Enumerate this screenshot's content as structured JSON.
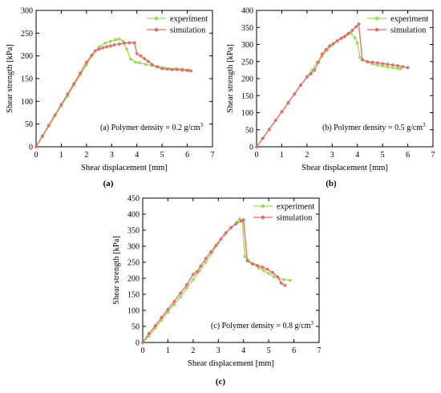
{
  "chart_data": [
    {
      "panel": "(a)",
      "type": "line",
      "annotation_main": "(a) Polymer density = 0.2 g/cm",
      "annotation_sup": "3",
      "xlabel": "Shear displacement [mm]",
      "ylabel": "Shear strength [kPa]",
      "xlim": [
        0,
        7
      ],
      "ylim": [
        0,
        300
      ],
      "xticks": [
        0,
        1,
        2,
        3,
        4,
        5,
        6,
        7
      ],
      "yticks": [
        0,
        50,
        100,
        150,
        200,
        250,
        300
      ],
      "legend_position": "top-right",
      "series": [
        {
          "name": "experiment",
          "color": "#99dd55",
          "points": [
            [
              0,
              0
            ],
            [
              0.25,
              22
            ],
            [
              0.5,
              45
            ],
            [
              0.75,
              68
            ],
            [
              1,
              90
            ],
            [
              1.25,
              112
            ],
            [
              1.5,
              135
            ],
            [
              1.75,
              158
            ],
            [
              2,
              180
            ],
            [
              2.25,
              203
            ],
            [
              2.5,
              220
            ],
            [
              2.75,
              228
            ],
            [
              2.95,
              232
            ],
            [
              3.15,
              236
            ],
            [
              3.3,
              237
            ],
            [
              3.45,
              232
            ],
            [
              3.6,
              215
            ],
            [
              3.75,
              193
            ],
            [
              3.95,
              186
            ],
            [
              4.1,
              185
            ],
            [
              4.35,
              181
            ],
            [
              4.6,
              179
            ],
            [
              4.85,
              176
            ],
            [
              5.05,
              174
            ],
            [
              5.3,
              172
            ],
            [
              5.55,
              172
            ],
            [
              5.8,
              171
            ],
            [
              6.05,
              169
            ]
          ]
        },
        {
          "name": "simulation",
          "color": "#ee6666",
          "points": [
            [
              0,
              0
            ],
            [
              0.25,
              24
            ],
            [
              0.5,
              47
            ],
            [
              0.75,
              70
            ],
            [
              1,
              93
            ],
            [
              1.25,
              116
            ],
            [
              1.5,
              139
            ],
            [
              1.75,
              162
            ],
            [
              2,
              186
            ],
            [
              2.2,
              201
            ],
            [
              2.35,
              211
            ],
            [
              2.5,
              215
            ],
            [
              2.65,
              218
            ],
            [
              2.8,
              220
            ],
            [
              2.95,
              222
            ],
            [
              3.1,
              224
            ],
            [
              3.3,
              226
            ],
            [
              3.5,
              228
            ],
            [
              3.7,
              229
            ],
            [
              3.9,
              229
            ],
            [
              4.0,
              205
            ],
            [
              4.15,
              200
            ],
            [
              4.3,
              194
            ],
            [
              4.45,
              188
            ],
            [
              4.6,
              181
            ],
            [
              4.8,
              176
            ],
            [
              5.0,
              172
            ],
            [
              5.2,
              171
            ],
            [
              5.4,
              170
            ],
            [
              5.6,
              170
            ],
            [
              5.8,
              169
            ],
            [
              6.0,
              168
            ],
            [
              6.15,
              167
            ]
          ]
        }
      ]
    },
    {
      "panel": "(b)",
      "type": "line",
      "annotation_main": "(b) Polymer density = 0.5 g/cm",
      "annotation_sup": "3",
      "xlabel": "Shear displacement [mm]",
      "ylabel": "Shear strength [kPa]",
      "xlim": [
        0,
        7
      ],
      "ylim": [
        0,
        400
      ],
      "xticks": [
        0,
        1,
        2,
        3,
        4,
        5,
        6,
        7
      ],
      "yticks": [
        0,
        50,
        100,
        150,
        200,
        250,
        300,
        350,
        400
      ],
      "legend_position": "top-right",
      "series": [
        {
          "name": "experiment",
          "color": "#99dd55",
          "points": [
            [
              0,
              0
            ],
            [
              0.25,
              25
            ],
            [
              0.5,
              51
            ],
            [
              0.75,
              77
            ],
            [
              1,
              103
            ],
            [
              1.25,
              128
            ],
            [
              1.5,
              154
            ],
            [
              1.75,
              180
            ],
            [
              2,
              206
            ],
            [
              2.2,
              225
            ],
            [
              2.4,
              248
            ],
            [
              2.6,
              265
            ],
            [
              2.8,
              283
            ],
            [
              3.0,
              298
            ],
            [
              3.2,
              310
            ],
            [
              3.4,
              320
            ],
            [
              3.6,
              329
            ],
            [
              3.75,
              333
            ],
            [
              3.9,
              320
            ],
            [
              4.0,
              305
            ],
            [
              4.1,
              262
            ],
            [
              4.2,
              255
            ],
            [
              4.4,
              248
            ],
            [
              4.6,
              243
            ],
            [
              4.8,
              240
            ],
            [
              5.0,
              237
            ],
            [
              5.2,
              234
            ],
            [
              5.4,
              232
            ],
            [
              5.6,
              230
            ],
            [
              5.7,
              229
            ]
          ]
        },
        {
          "name": "simulation",
          "color": "#ee6666",
          "points": [
            [
              0,
              0
            ],
            [
              0.25,
              25
            ],
            [
              0.5,
              51
            ],
            [
              0.75,
              77
            ],
            [
              1,
              103
            ],
            [
              1.25,
              129
            ],
            [
              1.5,
              155
            ],
            [
              1.75,
              181
            ],
            [
              2,
              205
            ],
            [
              2.15,
              214
            ],
            [
              2.3,
              225
            ],
            [
              2.45,
              248
            ],
            [
              2.6,
              272
            ],
            [
              2.75,
              285
            ],
            [
              2.9,
              296
            ],
            [
              3.05,
              303
            ],
            [
              3.2,
              311
            ],
            [
              3.35,
              318
            ],
            [
              3.5,
              324
            ],
            [
              3.65,
              333
            ],
            [
              3.8,
              342
            ],
            [
              3.95,
              352
            ],
            [
              4.05,
              360
            ],
            [
              4.2,
              255
            ],
            [
              4.4,
              250
            ],
            [
              4.6,
              248
            ],
            [
              4.8,
              246
            ],
            [
              5.0,
              244
            ],
            [
              5.2,
              242
            ],
            [
              5.4,
              240
            ],
            [
              5.6,
              238
            ],
            [
              5.8,
              235
            ],
            [
              6.0,
              232
            ]
          ]
        }
      ]
    },
    {
      "panel": "(c)",
      "type": "line",
      "annotation_main": "(c) Polymer density = 0.8 g/cm",
      "annotation_sup": "3",
      "xlabel": "Shear displacement [mm]",
      "ylabel": "Shear strength [kPa]",
      "xlim": [
        0,
        7
      ],
      "ylim": [
        0,
        450
      ],
      "xticks": [
        0,
        1,
        2,
        3,
        4,
        5,
        6,
        7
      ],
      "yticks": [
        0,
        50,
        100,
        150,
        200,
        250,
        300,
        350,
        400,
        450
      ],
      "legend_position": "top-right",
      "series": [
        {
          "name": "experiment",
          "color": "#99dd55",
          "points": [
            [
              0,
              0
            ],
            [
              0.25,
              20
            ],
            [
              0.5,
              45
            ],
            [
              0.75,
              70
            ],
            [
              1,
              95
            ],
            [
              1.25,
              118
            ],
            [
              1.5,
              142
            ],
            [
              1.75,
              170
            ],
            [
              2,
              196
            ],
            [
              2.25,
              222
            ],
            [
              2.5,
              250
            ],
            [
              2.75,
              280
            ],
            [
              3.0,
              310
            ],
            [
              3.25,
              336
            ],
            [
              3.5,
              358
            ],
            [
              3.75,
              376
            ],
            [
              3.85,
              385
            ],
            [
              3.95,
              380
            ],
            [
              4.05,
              268
            ],
            [
              4.2,
              255
            ],
            [
              4.4,
              245
            ],
            [
              4.6,
              232
            ],
            [
              4.8,
              225
            ],
            [
              5.0,
              215
            ],
            [
              5.2,
              205
            ],
            [
              5.4,
              200
            ],
            [
              5.6,
              196
            ],
            [
              5.85,
              194
            ]
          ]
        },
        {
          "name": "simulation",
          "color": "#ee6666",
          "points": [
            [
              0,
              0
            ],
            [
              0.25,
              28
            ],
            [
              0.5,
              52
            ],
            [
              0.75,
              78
            ],
            [
              1,
              103
            ],
            [
              1.25,
              128
            ],
            [
              1.5,
              154
            ],
            [
              1.75,
              180
            ],
            [
              2,
              212
            ],
            [
              2.15,
              220
            ],
            [
              2.3,
              238
            ],
            [
              2.5,
              262
            ],
            [
              2.7,
              282
            ],
            [
              2.9,
              302
            ],
            [
              3.1,
              322
            ],
            [
              3.3,
              342
            ],
            [
              3.5,
              358
            ],
            [
              3.7,
              370
            ],
            [
              3.9,
              378
            ],
            [
              4.0,
              382
            ],
            [
              4.15,
              255
            ],
            [
              4.35,
              245
            ],
            [
              4.55,
              240
            ],
            [
              4.75,
              235
            ],
            [
              4.95,
              228
            ],
            [
              5.15,
              218
            ],
            [
              5.35,
              205
            ],
            [
              5.5,
              185
            ],
            [
              5.65,
              178
            ]
          ]
        }
      ]
    }
  ]
}
